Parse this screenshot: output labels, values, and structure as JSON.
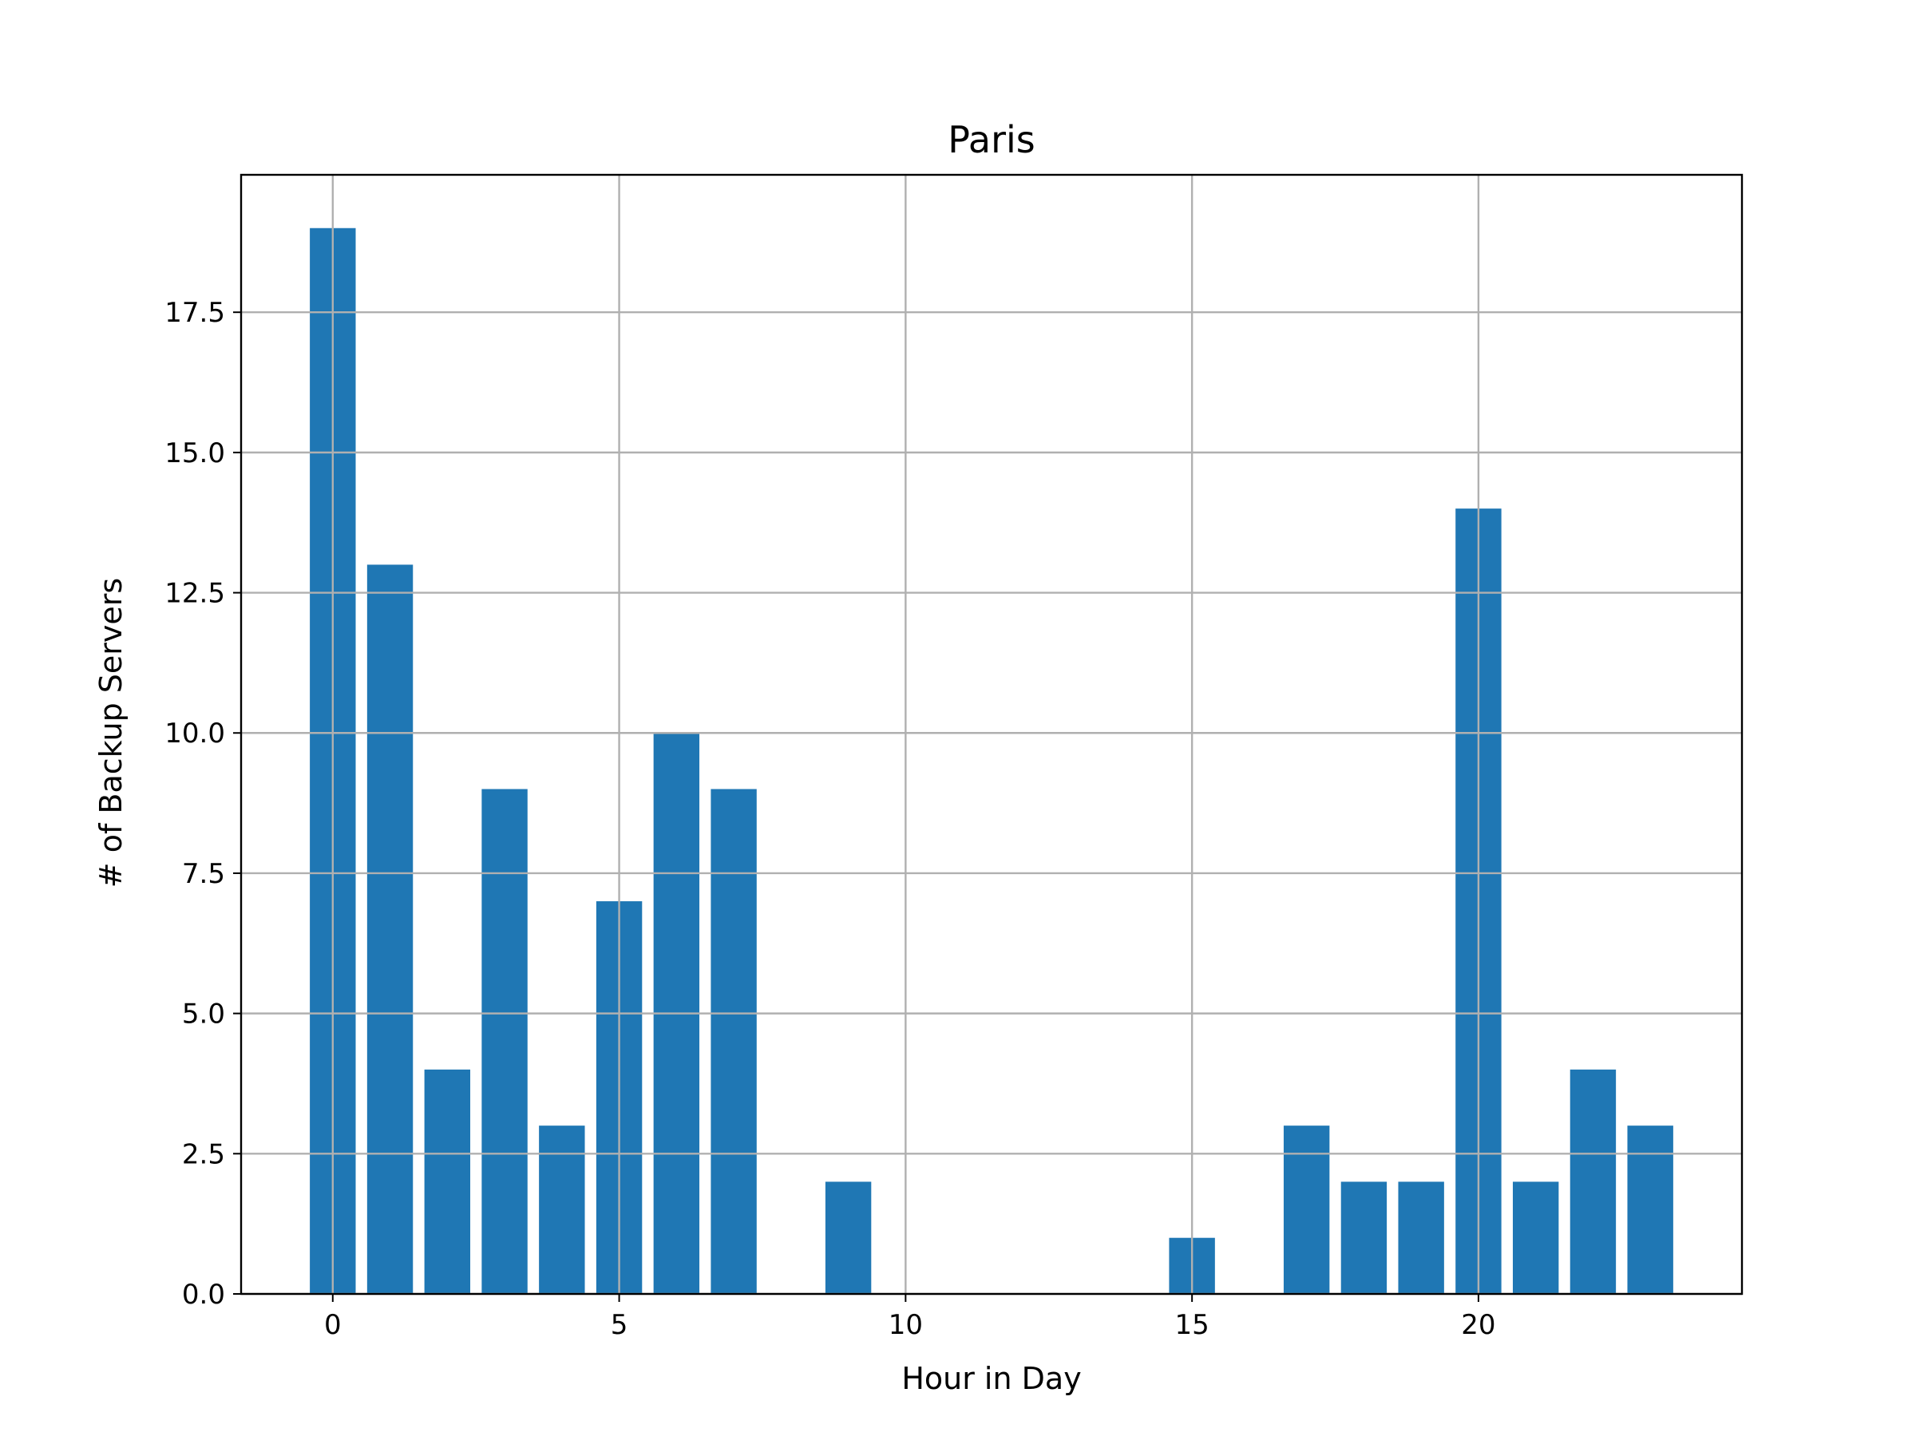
{
  "chart_data": {
    "type": "bar",
    "title": "Paris",
    "xlabel": "Hour in Day",
    "ylabel": "# of Backup Servers",
    "x": [
      0,
      1,
      2,
      3,
      4,
      5,
      6,
      7,
      9,
      15,
      17,
      18,
      19,
      20,
      21,
      22,
      23
    ],
    "values": [
      19,
      13,
      4,
      9,
      3,
      7,
      10,
      9,
      2,
      1,
      3,
      2,
      2,
      14,
      2,
      4,
      3
    ],
    "xlim": [
      -1.6,
      24.6
    ],
    "ylim": [
      0,
      19.95
    ],
    "xticks": [
      0,
      5,
      10,
      15,
      20
    ],
    "xtick_labels": [
      "0",
      "5",
      "10",
      "15",
      "20"
    ],
    "yticks": [
      0,
      2.5,
      5,
      7.5,
      10,
      12.5,
      15,
      17.5
    ],
    "ytick_labels": [
      "0.0",
      "2.5",
      "5.0",
      "7.5",
      "10.0",
      "12.5",
      "15.0",
      "17.5"
    ],
    "grid": true,
    "bar_color": "#1f77b4",
    "grid_color": "#b0b0b0"
  }
}
